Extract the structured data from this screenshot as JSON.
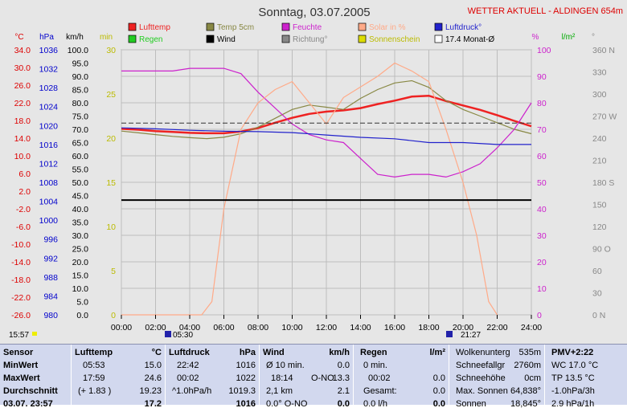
{
  "header": {
    "title": "Sonntag, 03.07.2005",
    "station": "WETTER AKTUELL - ALDINGEN 654m"
  },
  "legend": [
    {
      "label": "Lufttemp",
      "color": "#ee2222"
    },
    {
      "label": "Regen",
      "color": "#22cc22"
    },
    {
      "label": "Temp 5cm",
      "color": "#888844"
    },
    {
      "label": "Wind",
      "color": "#000000"
    },
    {
      "label": "Feuchte",
      "color": "#cc22cc"
    },
    {
      "label": "Richtung°",
      "color": "#888888"
    },
    {
      "label": "Solar in %",
      "color": "#ffaa88"
    },
    {
      "label": "Sonnenschein",
      "color": "#dddd00"
    },
    {
      "label": "Luftdruck°",
      "color": "#2222cc"
    },
    {
      "label": "17.4 Monat-Ø",
      "color": "#ffffff"
    }
  ],
  "axis_units": {
    "temp": "°C",
    "pressure": "hPa",
    "wind": "km/h",
    "sun": "min",
    "humidity": "%",
    "rain": "l/m²",
    "direction": "°"
  },
  "markers": {
    "left_time": "15:57",
    "sunrise": "05:30",
    "sunset": "21:27"
  },
  "chart_data": {
    "type": "line",
    "title": "Sonntag, 03.07.2005",
    "x_ticks": [
      "00:00",
      "02:00",
      "04:00",
      "06:00",
      "08:00",
      "10:00",
      "12:00",
      "14:00",
      "16:00",
      "18:00",
      "20:00",
      "22:00",
      "24:00"
    ],
    "axes": {
      "temp": {
        "unit": "°C",
        "range": [
          -26,
          34
        ],
        "ticks": [
          "34.0",
          "30.0",
          "26.0",
          "22.0",
          "18.0",
          "14.0",
          "10.0",
          "6.0",
          "2.0",
          "-2.0",
          "-6.0",
          "-10.0",
          "-14.0",
          "-18.0",
          "-22.0",
          "-26.0"
        ]
      },
      "pressure": {
        "unit": "hPa",
        "range": [
          980,
          1036
        ],
        "ticks": [
          "1036",
          "1032",
          "1028",
          "1024",
          "1020",
          "1016",
          "1012",
          "1008",
          "1004",
          "1000",
          "996",
          "992",
          "988",
          "984",
          "980"
        ]
      },
      "wind": {
        "unit": "km/h",
        "range": [
          0,
          100
        ],
        "ticks": [
          "100.0",
          "95.0",
          "90.0",
          "85.0",
          "80.0",
          "75.0",
          "70.0",
          "65.0",
          "60.0",
          "55.0",
          "50.0",
          "45.0",
          "40.0",
          "35.0",
          "30.0",
          "25.0",
          "20.0",
          "15.0",
          "10.0",
          "5.0",
          "0.0"
        ]
      },
      "sun": {
        "unit": "min",
        "range": [
          0,
          30
        ],
        "ticks": [
          "30",
          "25",
          "20",
          "15",
          "10",
          "5",
          "0"
        ]
      },
      "humidity": {
        "unit": "%",
        "range": [
          0,
          100
        ],
        "ticks": [
          "100",
          "90",
          "80",
          "70",
          "60",
          "50",
          "40",
          "30",
          "20",
          "10",
          "0"
        ]
      },
      "rain": {
        "unit": "l/m²",
        "range": [
          0,
          10
        ]
      },
      "direction": {
        "unit": "°",
        "range": [
          0,
          360
        ],
        "ticks": [
          "360 N",
          "330",
          "300",
          "270 W",
          "240",
          "210",
          "180 S",
          "150",
          "120",
          "90 O",
          "60",
          "30",
          "0 N"
        ]
      }
    },
    "series": [
      {
        "name": "Lufttemp",
        "axis": "temp",
        "color": "#ee2222",
        "x": [
          0,
          1,
          2,
          3,
          4,
          5,
          6,
          7,
          8,
          9,
          10,
          11,
          12,
          13,
          14,
          15,
          16,
          17,
          18,
          19,
          20,
          21,
          22,
          23,
          24
        ],
        "y": [
          16.1,
          15.9,
          15.6,
          15.4,
          15.2,
          15.1,
          15.1,
          15.5,
          16.3,
          17.5,
          18.6,
          19.5,
          20.0,
          20.3,
          20.8,
          21.7,
          22.5,
          23.4,
          23.6,
          22.4,
          21.4,
          20.4,
          19.2,
          17.9,
          16.7
        ]
      },
      {
        "name": "Temp 5cm",
        "axis": "temp",
        "color": "#888844",
        "x": [
          0,
          1,
          2,
          3,
          4,
          5,
          6,
          7,
          8,
          9,
          10,
          11,
          12,
          13,
          14,
          15,
          16,
          17,
          18,
          19,
          20,
          21,
          22,
          23,
          24
        ],
        "y": [
          15.6,
          15.2,
          14.8,
          14.4,
          14.1,
          13.9,
          14.2,
          15.0,
          16.5,
          18.5,
          20.5,
          21.5,
          21.0,
          20.5,
          23.0,
          25.0,
          26.5,
          27.0,
          25.5,
          22.5,
          20.5,
          19.0,
          17.5,
          16.0,
          15.0
        ]
      },
      {
        "name": "Feuchte",
        "axis": "humidity",
        "color": "#cc22cc",
        "x": [
          0,
          1,
          2,
          3,
          4,
          5,
          6,
          7,
          8,
          9,
          10,
          11,
          12,
          13,
          14,
          15,
          16,
          17,
          18,
          19,
          20,
          21,
          22,
          23,
          24
        ],
        "y": [
          92,
          92,
          92,
          92,
          93,
          93,
          93,
          91,
          84,
          78,
          72,
          68,
          66,
          65,
          59,
          53,
          52,
          53,
          53,
          52,
          54,
          57,
          63,
          70,
          80
        ]
      },
      {
        "name": "Solar in %",
        "axis": "humidity",
        "color": "#ffaa88",
        "x": [
          0,
          4.7,
          5.3,
          6,
          7,
          8,
          9,
          10,
          11,
          12,
          13,
          14,
          15,
          16,
          17,
          18,
          19,
          20,
          20.8,
          21.5,
          22
        ],
        "y": [
          0,
          0,
          5,
          40,
          70,
          80,
          85,
          88,
          80,
          72,
          82,
          86,
          90,
          95,
          92,
          88,
          70,
          50,
          30,
          5,
          0
        ]
      },
      {
        "name": "Luftdruck°",
        "axis": "pressure",
        "color": "#2222cc",
        "x": [
          0,
          2,
          4,
          6,
          8,
          10,
          12,
          14,
          16,
          18,
          20,
          22,
          24
        ],
        "y": [
          1019.5,
          1019.3,
          1019.0,
          1018.8,
          1018.7,
          1018.5,
          1018.0,
          1017.5,
          1017.2,
          1016.4,
          1016.4,
          1016.0,
          1016.0
        ]
      },
      {
        "name": "Wind",
        "axis": "wind",
        "color": "#000000",
        "x": [
          0,
          2,
          4,
          6,
          8,
          10,
          12,
          14,
          16,
          18,
          20,
          22,
          24
        ],
        "y": [
          43.3,
          43.3,
          43.3,
          43.3,
          43.3,
          43.3,
          43.3,
          43.3,
          43.3,
          43.3,
          43.3,
          43.3,
          43.3
        ]
      },
      {
        "name": "17.4 Monat-Ø",
        "axis": "temp",
        "color": "#333333",
        "x": [
          0,
          24
        ],
        "y": [
          17.4,
          17.4
        ]
      }
    ],
    "grid": true,
    "legend_placement": "top"
  },
  "table": {
    "sensor": {
      "h": "Sensor",
      "r1": "MinWert",
      "r2": "MaxWert",
      "r3": "Durchschnitt",
      "r4": "03.07. 23:57"
    },
    "lufttemp": {
      "h": "Lufttemp",
      "u": "°C",
      "r1a": "05:53",
      "r1b": "15.0",
      "r2a": "17:59",
      "r2b": "24.6",
      "r3a": "(+ 1.83 )",
      "r3b": "19.23",
      "r4b": "17.2"
    },
    "luftdruck": {
      "h": "Luftdruck",
      "u": "hPa",
      "r1a": "22:42",
      "r1b": "1016",
      "r2a": "00:02",
      "r2b": "1022",
      "r3a": "^1.0hPa/h",
      "r3b": "1019.3",
      "r4b": "1016"
    },
    "wind": {
      "h": "Wind",
      "u": "km/h",
      "r1a": "Ø 10 min.",
      "r1b": "0.0",
      "r2a": "18:14",
      "r2m": "O-NO",
      "r2b": "13.3",
      "r3a": "2,1 km",
      "r3b": "2.1",
      "r4a": "0.0° O-NO",
      "r4b": "0.0"
    },
    "regen": {
      "h": "Regen",
      "u": "l/m²",
      "r1a": "0 min.",
      "r2a": "00:02",
      "r2b": "0.0",
      "r3a": "Gesamt:",
      "r3b": "0.0",
      "r4a": "0.0 l/h",
      "r4b": "0.0"
    },
    "info": {
      "r0a": "Wolkenunterg",
      "r0b": "535m",
      "r1a": "Schneefallgr",
      "r1b": "2760m",
      "r2a": "Schneehöhe",
      "r2b": "0cm",
      "r3a": "Max. Sonnen",
      "r3b": "64,838°",
      "r4a": "Sonnen",
      "r4b": "18,845°"
    },
    "pmv": {
      "h": "PMV+2:22",
      "r1": "WC 17.0 °C",
      "r2": "TP 13.5 °C",
      "r3": "-1.0hPa/3h",
      "r4": "2.9 hPa/1h"
    }
  }
}
